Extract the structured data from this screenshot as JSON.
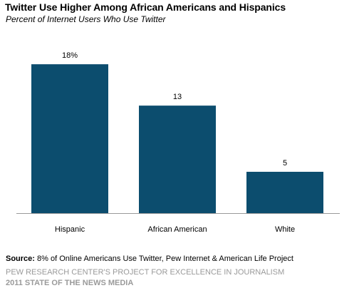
{
  "title": "Twitter Use Higher Among African Americans and Hispanics",
  "subtitle": "Percent of Internet Users Who Use Twitter",
  "colors": {
    "bar": "#0c4d6e",
    "axis": "#9a9a9a",
    "credit": "#9a9a9a"
  },
  "chart_data": {
    "type": "bar",
    "categories": [
      "Hispanic",
      "African American",
      "White"
    ],
    "values": [
      18,
      13,
      5
    ],
    "data_labels": [
      "18%",
      "13",
      "5"
    ],
    "title": "Twitter Use Higher Among African Americans and Hispanics",
    "subtitle": "Percent of Internet Users Who Use Twitter",
    "xlabel": "",
    "ylabel": "",
    "ylim": [
      0,
      18.7
    ],
    "grid": false,
    "legend": "none"
  },
  "footer": {
    "source_label": "Source:",
    "source_text": "8% of Online Americans Use Twitter, Pew Internet & American Life Project",
    "credit_line_1": "PEW RESEARCH CENTER'S PROJECT FOR EXCELLENCE IN JOURNALISM",
    "credit_line_2": "2011 STATE OF THE NEWS MEDIA"
  }
}
